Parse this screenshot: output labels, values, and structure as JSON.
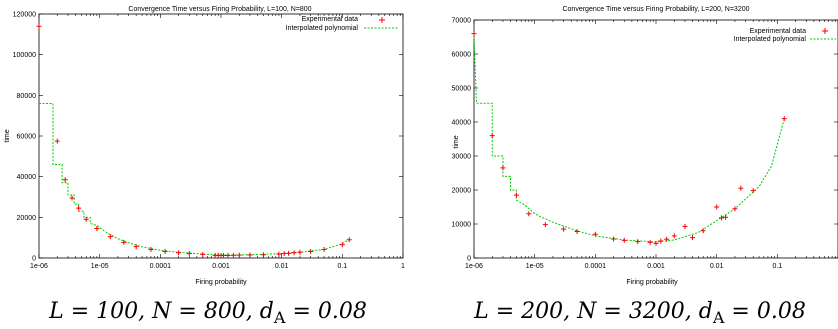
{
  "chart_data": [
    {
      "type": "scatter",
      "title": "Convergence Time versus Firing Probability, L=100, N=800",
      "xlabel": "Firing probability",
      "ylabel": "time",
      "xscale": "log",
      "xlim": [
        1e-06,
        1
      ],
      "ylim": [
        0,
        120000
      ],
      "x_ticks": [
        "1e-06",
        "1e-05",
        "0.0001",
        "0.001",
        "0.01",
        "0.1",
        "1"
      ],
      "y_ticks": [
        "0",
        "20000",
        "40000",
        "60000",
        "80000",
        "100000",
        "120000"
      ],
      "legend_position": "top-right",
      "caption": "L = 100, N = 800, d_A = 0.08",
      "series": [
        {
          "name": "Experimental data",
          "kind": "points",
          "color": "#ff0000",
          "points": [
            [
              1e-06,
              114000
            ],
            [
              2e-06,
              57500
            ],
            [
              2.7e-06,
              38500
            ],
            [
              3.5e-06,
              29500
            ],
            [
              4.5e-06,
              24500
            ],
            [
              6e-06,
              19000
            ],
            [
              9e-06,
              14500
            ],
            [
              1.5e-05,
              10500
            ],
            [
              2.5e-05,
              7700
            ],
            [
              4e-05,
              5600
            ],
            [
              7e-05,
              4200
            ],
            [
              0.00012,
              3200
            ],
            [
              0.0002,
              2600
            ],
            [
              0.0003,
              2200
            ],
            [
              0.0005,
              1800
            ],
            [
              0.0008,
              1300
            ],
            [
              0.0009,
              1300
            ],
            [
              0.001,
              1200
            ],
            [
              0.0011,
              1200
            ],
            [
              0.0013,
              1200
            ],
            [
              0.0016,
              1300
            ],
            [
              0.002,
              1400
            ],
            [
              0.003,
              1500
            ],
            [
              0.005,
              1600
            ],
            [
              0.009,
              1900
            ],
            [
              0.011,
              2200
            ],
            [
              0.013,
              2300
            ],
            [
              0.016,
              2600
            ],
            [
              0.02,
              2800
            ],
            [
              0.03,
              3200
            ],
            [
              0.05,
              4200
            ],
            [
              0.1,
              6500
            ],
            [
              0.13,
              9000
            ]
          ]
        },
        {
          "name": "Interpolated polynomial",
          "kind": "line",
          "color": "#00cc00",
          "points": [
            [
              1e-06,
              76000
            ],
            [
              1.7e-06,
              76000
            ],
            [
              1.7e-06,
              46000
            ],
            [
              2.4e-06,
              46000
            ],
            [
              2.4e-06,
              37000
            ],
            [
              3e-06,
              37000
            ],
            [
              3e-06,
              31000
            ],
            [
              3.8e-06,
              31000
            ],
            [
              3.8e-06,
              26500
            ],
            [
              4.5e-06,
              26500
            ],
            [
              4.5e-06,
              23000
            ],
            [
              5.5e-06,
              23000
            ],
            [
              5.5e-06,
              20000
            ],
            [
              7e-06,
              20000
            ],
            [
              7e-06,
              17000
            ],
            [
              9e-06,
              16000
            ],
            [
              1.3e-05,
              12500
            ],
            [
              2e-05,
              9500
            ],
            [
              3e-05,
              7500
            ],
            [
              5e-05,
              5500
            ],
            [
              0.0001,
              3800
            ],
            [
              0.0002,
              2800
            ],
            [
              0.0005,
              1900
            ],
            [
              0.001,
              1500
            ],
            [
              0.002,
              1500
            ],
            [
              0.005,
              1800
            ],
            [
              0.01,
              2200
            ],
            [
              0.02,
              2900
            ],
            [
              0.05,
              4200
            ],
            [
              0.1,
              7000
            ],
            [
              0.13,
              9200
            ]
          ]
        }
      ]
    },
    {
      "type": "scatter",
      "title": "Convergence Time versus Firing Probability, L=200, N=3200",
      "xlabel": "Firing probability",
      "ylabel": "time",
      "xscale": "log",
      "xlim": [
        1e-06,
        1
      ],
      "ylim": [
        0,
        70000
      ],
      "x_ticks": [
        "1e-06",
        "1e-05",
        "0.0001",
        "0.001",
        "0.01",
        "0.1"
      ],
      "y_ticks": [
        "0",
        "10000",
        "20000",
        "30000",
        "40000",
        "50000",
        "60000",
        "70000"
      ],
      "legend_position": "top-right",
      "caption": "L = 200, N = 3200, d_A = 0.08",
      "series": [
        {
          "name": "Experimental data",
          "kind": "points",
          "color": "#ff0000",
          "points": [
            [
              1e-06,
              66000
            ],
            [
              2e-06,
              36000
            ],
            [
              3e-06,
              26500
            ],
            [
              5e-06,
              18500
            ],
            [
              8e-06,
              13000
            ],
            [
              1.5e-05,
              9800
            ],
            [
              3e-05,
              8500
            ],
            [
              5e-05,
              7800
            ],
            [
              0.0001,
              7000
            ],
            [
              0.0002,
              5600
            ],
            [
              0.0003,
              5200
            ],
            [
              0.0005,
              4800
            ],
            [
              0.0008,
              4600
            ],
            [
              0.001,
              4300
            ],
            [
              0.0012,
              5000
            ],
            [
              0.0015,
              5500
            ],
            [
              0.002,
              6500
            ],
            [
              0.003,
              9300
            ],
            [
              0.004,
              6000
            ],
            [
              0.006,
              8000
            ],
            [
              0.01,
              15000
            ],
            [
              0.012,
              11800
            ],
            [
              0.014,
              12000
            ],
            [
              0.02,
              14500
            ],
            [
              0.025,
              20500
            ],
            [
              0.04,
              19800
            ],
            [
              0.13,
              41000
            ]
          ]
        },
        {
          "name": "Interpolated polynomial",
          "kind": "line",
          "color": "#00cc00",
          "points": [
            [
              1e-06,
              65000
            ],
            [
              1.1e-06,
              45500
            ],
            [
              2e-06,
              45500
            ],
            [
              2e-06,
              30000
            ],
            [
              3e-06,
              30000
            ],
            [
              3e-06,
              24000
            ],
            [
              4e-06,
              24000
            ],
            [
              4e-06,
              20000
            ],
            [
              5e-06,
              20000
            ],
            [
              5e-06,
              17000
            ],
            [
              7e-06,
              15500
            ],
            [
              1e-05,
              13000
            ],
            [
              2e-05,
              10500
            ],
            [
              5e-05,
              8000
            ],
            [
              0.0001,
              6500
            ],
            [
              0.0003,
              5300
            ],
            [
              0.001,
              4700
            ],
            [
              0.002,
              5300
            ],
            [
              0.005,
              7500
            ],
            [
              0.01,
              11000
            ],
            [
              0.02,
              14500
            ],
            [
              0.05,
              21000
            ],
            [
              0.08,
              27000
            ],
            [
              0.13,
              41000
            ]
          ]
        }
      ]
    }
  ]
}
